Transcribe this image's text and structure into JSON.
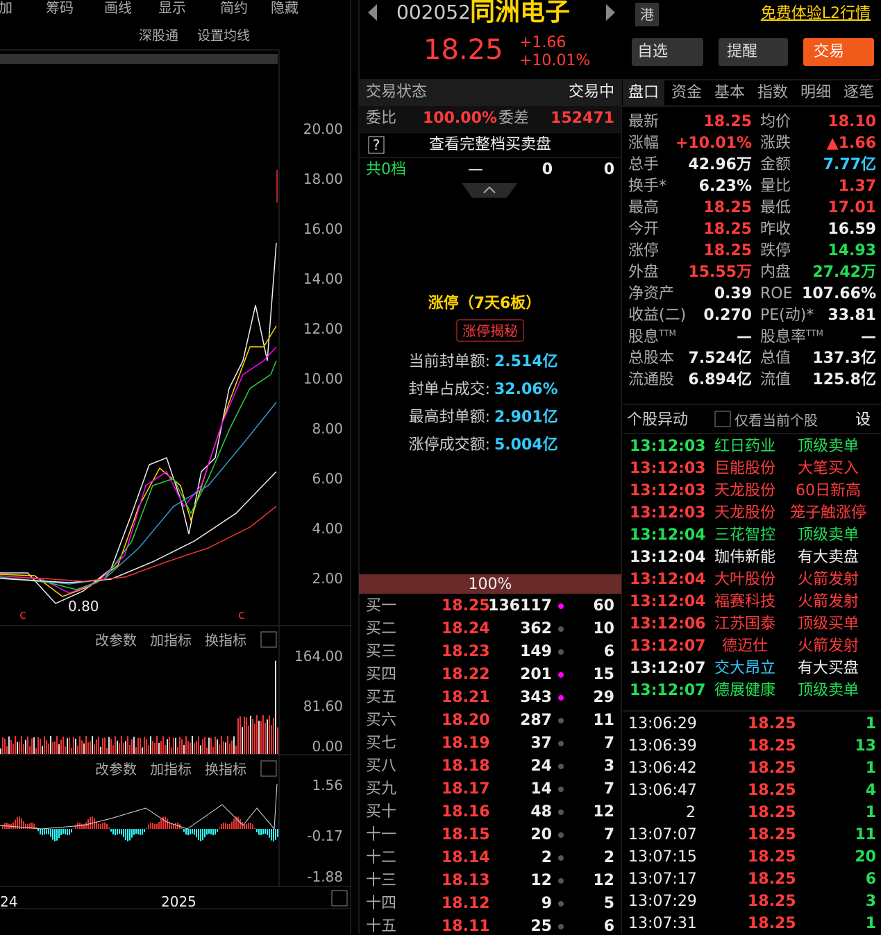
{
  "toolbar": [
    "加",
    "筹码",
    "画线",
    "显示",
    "简约",
    "隐藏"
  ],
  "kline": {
    "links": [
      "深股通",
      "设置均线"
    ],
    "yticks": [
      "20.00",
      "18.00",
      "16.00",
      "14.00",
      "12.00",
      "10.00",
      "8.00",
      "6.00",
      "4.00",
      "2.00"
    ],
    "low_label": "0.80",
    "panel_links": [
      "改参数",
      "加指标",
      "换指标"
    ],
    "volume_ticks": [
      "164.00",
      "81.60",
      "0.00"
    ],
    "macd_ticks": [
      "1.56",
      "-0.17",
      "-1.88"
    ],
    "x_labels": [
      "24",
      "2025"
    ]
  },
  "header": {
    "code": "002052",
    "name": "同洲电子",
    "market": "港",
    "promo": "免费体验L2行情",
    "price": "18.25",
    "change": "+1.66",
    "change_pct": "+10.01%",
    "buttons": [
      "自选",
      "提醒",
      "交易"
    ]
  },
  "order_book": {
    "status_label": "交易状态",
    "status": "交易中",
    "ratio_label": "委比",
    "ratio": "100.00%",
    "diff_label": "委差",
    "diff": "152471",
    "help": "?",
    "view_full": "查看完整档买卖盘",
    "total_label": "共0档",
    "total_dash": "—",
    "total_a": "0",
    "total_b": "0",
    "limit_title": "涨停（7天6板）",
    "limit_button": "涨停揭秘",
    "seal": [
      [
        "当前封单额:",
        "2.514亿"
      ],
      [
        "封单占成交:",
        "32.06%"
      ],
      [
        "最高封单额:",
        "2.901亿"
      ],
      [
        "涨停成交额:",
        "5.004亿"
      ]
    ],
    "bar_label": "100%",
    "bids": [
      [
        "买一",
        "18.25",
        "136117",
        "60"
      ],
      [
        "买二",
        "18.24",
        "362",
        "10"
      ],
      [
        "买三",
        "18.23",
        "149",
        "6"
      ],
      [
        "买四",
        "18.22",
        "201",
        "15"
      ],
      [
        "买五",
        "18.21",
        "343",
        "29"
      ],
      [
        "买六",
        "18.20",
        "287",
        "11"
      ],
      [
        "买七",
        "18.19",
        "37",
        "7"
      ],
      [
        "买八",
        "18.18",
        "24",
        "3"
      ],
      [
        "买九",
        "18.17",
        "14",
        "7"
      ],
      [
        "买十",
        "18.16",
        "48",
        "12"
      ],
      [
        "十一",
        "18.15",
        "20",
        "7"
      ],
      [
        "十二",
        "18.14",
        "2",
        "2"
      ],
      [
        "十三",
        "18.13",
        "12",
        "12"
      ],
      [
        "十四",
        "18.12",
        "9",
        "5"
      ],
      [
        "十五",
        "18.11",
        "25",
        "6"
      ]
    ]
  },
  "tabs": [
    "盘口",
    "资金",
    "基本",
    "指数",
    "明细",
    "逐笔"
  ],
  "quote": [
    [
      "最新",
      "18.25",
      "均价",
      "18.10"
    ],
    [
      "涨幅",
      "+10.01%",
      "涨跌",
      "▲1.66"
    ],
    [
      "总手",
      "42.96万",
      "金额",
      "7.77亿"
    ],
    [
      "换手*",
      "6.23%",
      "量比",
      "1.37"
    ],
    [
      "最高",
      "18.25",
      "最低",
      "17.01"
    ],
    [
      "今开",
      "18.25",
      "昨收",
      "16.59"
    ],
    [
      "涨停",
      "18.25",
      "跌停",
      "14.93"
    ],
    [
      "外盘",
      "15.55万",
      "内盘",
      "27.42万"
    ],
    [
      "净资产",
      "0.39",
      "ROE",
      "107.66%"
    ],
    [
      "收益(二)",
      "0.270",
      "PE(动)*",
      "33.81"
    ],
    [
      {
        "text": "股息",
        "sup": "TTM"
      },
      "—",
      {
        "text": "股息率",
        "sup": "TTM"
      },
      "—"
    ],
    [
      "总股本",
      "7.524亿",
      "总值",
      "137.3亿"
    ],
    [
      "流通股",
      "6.894亿",
      "流值",
      "125.8亿"
    ]
  ],
  "alerts": {
    "title": "个股异动",
    "filter": "仅看当前个股",
    "settings": "设",
    "rows": [
      [
        "13:12:03",
        "红日药业",
        "顶级卖单"
      ],
      [
        "13:12:03",
        "巨能股份",
        "大笔买入"
      ],
      [
        "13:12:03",
        "天龙股份",
        "60日新高"
      ],
      [
        "13:12:03",
        "天龙股份",
        "笼子触涨停"
      ],
      [
        "13:12:04",
        "三花智控",
        "顶级卖单"
      ],
      [
        "13:12:04",
        "珈伟新能",
        "有大卖盘"
      ],
      [
        "13:12:04",
        "大叶股份",
        "火箭发射"
      ],
      [
        "13:12:04",
        "福赛科技",
        "火箭发射"
      ],
      [
        "13:12:06",
        "江苏国泰",
        "顶级买单"
      ],
      [
        "13:12:07",
        "德迈仕",
        "火箭发射"
      ],
      [
        "13:12:07",
        "交大昂立",
        "有大买盘"
      ],
      [
        "13:12:07",
        "德展健康",
        "顶级卖单"
      ]
    ]
  },
  "ticks": [
    [
      "13:06:29",
      "18.25",
      "1"
    ],
    [
      "13:06:39",
      "18.25",
      "13"
    ],
    [
      "13:06:42",
      "18.25",
      "1"
    ],
    [
      "13:06:47",
      "18.25",
      "4"
    ],
    [
      "2",
      "18.25",
      "1"
    ],
    [
      "13:07:07",
      "18.25",
      "11"
    ],
    [
      "13:07:15",
      "18.25",
      "20"
    ],
    [
      "13:07:17",
      "18.25",
      "6"
    ],
    [
      "13:07:29",
      "18.25",
      "3"
    ],
    [
      "13:07:31",
      "18.25",
      "1"
    ]
  ]
}
